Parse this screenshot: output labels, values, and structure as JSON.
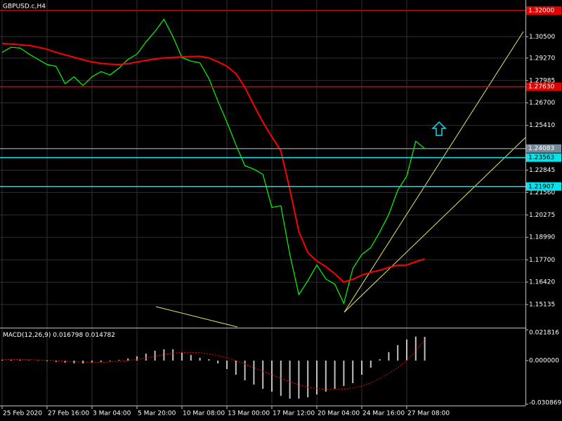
{
  "chart_data": [
    {
      "type": "line",
      "title": "GBPUSD.c,H4",
      "categories": [
        "25 Feb 2020",
        null,
        null,
        null,
        null,
        "27 Feb 16:00",
        null,
        null,
        null,
        null,
        "3 Mar 04:00",
        null,
        null,
        null,
        null,
        "5 Mar 20:00",
        null,
        null,
        null,
        null,
        "10 Mar 08:00",
        null,
        null,
        null,
        null,
        "13 Mar 00:00",
        null,
        null,
        null,
        null,
        "17 Mar 12:00",
        null,
        null,
        null,
        null,
        "20 Mar 04:00",
        null,
        null,
        null,
        null,
        "24 Mar 16:00",
        null,
        null,
        null,
        null,
        "27 Mar 08:00",
        null,
        null
      ],
      "series": [
        {
          "color": "#00ff00",
          "values": [
            1.296,
            1.299,
            1.2985,
            1.295,
            1.292,
            1.289,
            1.288,
            1.278,
            1.282,
            1.277,
            1.282,
            1.285,
            1.283,
            1.287,
            1.292,
            1.295,
            1.302,
            1.308,
            1.315,
            1.305,
            1.293,
            1.291,
            1.29,
            1.281,
            1.268,
            1.256,
            1.243,
            1.231,
            1.229,
            1.226,
            1.207,
            1.208,
            1.18,
            1.157,
            1.165,
            1.174,
            1.166,
            1.163,
            1.152,
            1.172,
            1.18,
            1.184,
            1.193,
            1.203,
            1.217,
            1.225,
            1.245,
            1.24083
          ]
        },
        {
          "color": "#ff0000",
          "values": [
            1.3011,
            1.3008,
            1.3004,
            1.2999,
            1.299,
            1.2978,
            1.296,
            1.2946,
            1.2932,
            1.2918,
            1.2905,
            1.2897,
            1.2892,
            1.289,
            1.2895,
            1.2905,
            1.2914,
            1.2922,
            1.2928,
            1.2931,
            1.2934,
            1.2936,
            1.2937,
            1.2928,
            1.2906,
            1.288,
            1.2838,
            1.276,
            1.2657,
            1.256,
            1.2475,
            1.2395,
            1.2173,
            1.1932,
            1.1811,
            1.1763,
            1.1731,
            1.169,
            1.1642,
            1.1658,
            1.1682,
            1.1698,
            1.171,
            1.1727,
            1.1739,
            1.174,
            1.1759,
            1.1775
          ]
        }
      ],
      "ylim": [
        1.13887,
        1.32604
      ],
      "yticks": [
        {
          "value": 1.305,
          "label": "1.30500"
        },
        {
          "value": 1.2927,
          "label": "1.29270"
        },
        {
          "value": 1.27985,
          "label": "1.27985"
        },
        {
          "value": 1.267,
          "label": "1.26700"
        },
        {
          "value": 1.2541,
          "label": "1.25410"
        },
        {
          "value": 1.22845,
          "label": "1.22845"
        },
        {
          "value": 1.2156,
          "label": "1.21560"
        },
        {
          "value": 1.20275,
          "label": "1.20275"
        },
        {
          "value": 1.1899,
          "label": "1.18990"
        },
        {
          "value": 1.177,
          "label": "1.17700"
        },
        {
          "value": 1.1642,
          "label": "1.16420"
        },
        {
          "value": 1.15135,
          "label": "1.15135"
        }
      ],
      "levels": [
        {
          "value": 1.32,
          "label": "1.32000",
          "color": "#e00000"
        },
        {
          "value": 1.2763,
          "label": "1.27630",
          "color": "#e00000"
        },
        {
          "value": 1.24083,
          "label": "1.24083",
          "color": "#778899"
        },
        {
          "value": 1.23563,
          "label": "1.23563",
          "color": "#00e5ee"
        },
        {
          "value": 1.21907,
          "label": "1.21907",
          "color": "#00e5ee"
        }
      ],
      "grid": true
    },
    {
      "type": "bar",
      "title": "MACD(12,26,9)",
      "color": "#c0c0c0",
      "values": [
        0.0005,
        0.0008,
        0.0006,
        0.0003,
        0,
        -0.0005,
        -0.001,
        -0.0015,
        -0.002,
        -0.002,
        -0.0015,
        -0.001,
        -0.0005,
        0.0005,
        0.0015,
        0.003,
        0.005,
        0.007,
        0.008,
        0.008,
        0.006,
        0.004,
        0.002,
        0.001,
        -0.002,
        -0.006,
        -0.01,
        -0.014,
        -0.017,
        -0.02,
        -0.022,
        -0.025,
        -0.027,
        -0.027,
        -0.026,
        -0.024,
        -0.022,
        -0.02,
        -0.018,
        -0.016,
        -0.01,
        -0.005,
        0.001,
        0.006,
        0.011,
        0.015,
        0.017,
        0.016798
      ],
      "series": [
        {
          "color": "#ff0000",
          "values": [
            0.0008,
            0.0007,
            0.0007,
            0.0006,
            0.0004,
            0.0002,
            -0.0001,
            -0.0004,
            -0.0008,
            -0.0011,
            -0.0012,
            -0.0012,
            -0.001,
            -0.0006,
            0,
            0.0008,
            0.0018,
            0.003,
            0.0042,
            0.0052,
            0.0057,
            0.0058,
            0.0055,
            0.0048,
            0.0036,
            0.002,
            0,
            -0.0025,
            -0.005,
            -0.0075,
            -0.01,
            -0.0125,
            -0.015,
            -0.0172,
            -0.0188,
            -0.0198,
            -0.0204,
            -0.0205,
            -0.0202,
            -0.0195,
            -0.018,
            -0.0158,
            -0.0128,
            -0.009,
            -0.005,
            0,
            0.007,
            0.014782
          ]
        }
      ],
      "ylim": [
        -0.030869,
        0.021816
      ],
      "yticks": [
        0.021816,
        {
          "value": 0,
          "label": "0.000000"
        },
        -0.030869
      ]
    }
  ]
}
